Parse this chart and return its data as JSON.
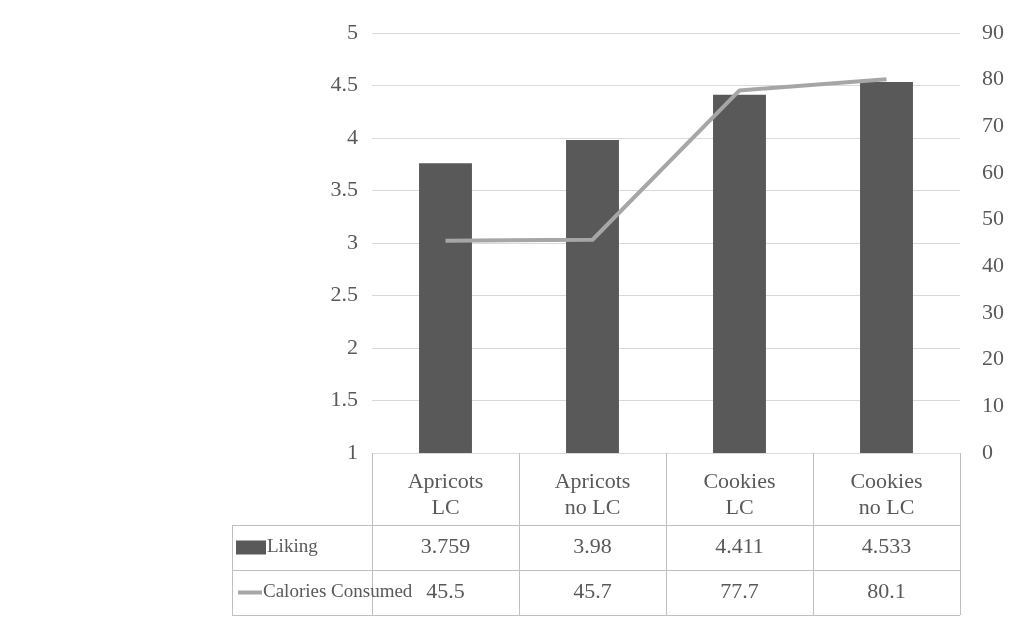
{
  "chart_data": {
    "type": "bar",
    "categories": [
      "Apricots LC",
      "Apricots no LC",
      "Cookies LC",
      "Cookies no LC"
    ],
    "series": [
      {
        "name": "Liking",
        "color": "#595959",
        "values": [
          3.759,
          3.98,
          4.411,
          4.533
        ]
      },
      {
        "name": "Calories Consumed",
        "type": "line",
        "axis": "y2",
        "color": "#a6a6a6",
        "values": [
          45.5,
          45.7,
          77.7,
          80.1
        ]
      }
    ],
    "ylim": [
      1,
      5
    ],
    "yticks": [
      1,
      1.5,
      2,
      2.5,
      3,
      3.5,
      4,
      4.5,
      5
    ],
    "y2lim": [
      0,
      90
    ],
    "y2ticks": [
      0,
      10,
      20,
      30,
      40,
      50,
      60,
      70,
      80,
      90
    ],
    "grid": "y",
    "legend": "bottom",
    "data_labels": true,
    "marker": "none"
  }
}
